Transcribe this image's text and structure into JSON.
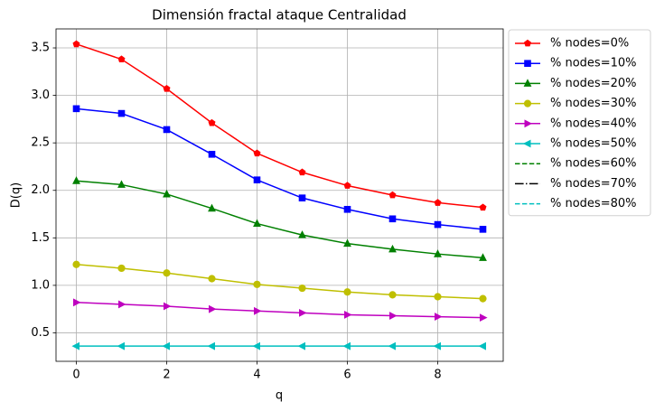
{
  "chart_data": {
    "type": "line",
    "title": "Dimensión fractal ataque Centralidad",
    "xlabel": "q",
    "ylabel": "D(q)",
    "x": [
      0,
      1,
      2,
      3,
      4,
      5,
      6,
      7,
      8,
      9
    ],
    "xlim": [
      -0.45,
      9.45
    ],
    "xticks": [
      0,
      2,
      4,
      6,
      8
    ],
    "ylim": [
      0.2,
      3.7
    ],
    "yticks": [
      0.5,
      {
        "value": 1,
        "label": "1.0"
      },
      1.5,
      {
        "value": 2,
        "label": "2.0"
      },
      2.5,
      {
        "value": 3,
        "label": "3.0"
      },
      3.5
    ],
    "grid": true,
    "legend": "outside upper right",
    "series": [
      {
        "name": "% nodes=0%",
        "color": "#ff0000",
        "marker": "pentagon",
        "linestyle": "solid",
        "values": [
          3.54,
          3.38,
          3.07,
          2.71,
          2.39,
          2.19,
          2.05,
          1.95,
          1.87,
          1.82
        ]
      },
      {
        "name": "% nodes=10%",
        "color": "#0000ff",
        "marker": "square",
        "linestyle": "solid",
        "values": [
          2.86,
          2.81,
          2.64,
          2.38,
          2.11,
          1.92,
          1.8,
          1.7,
          1.64,
          1.59
        ]
      },
      {
        "name": "% nodes=20%",
        "color": "#008000",
        "marker": "triangle-up",
        "linestyle": "solid",
        "values": [
          2.1,
          2.06,
          1.96,
          1.81,
          1.65,
          1.53,
          1.44,
          1.38,
          1.33,
          1.29
        ]
      },
      {
        "name": "% nodes=30%",
        "color": "#bfbf00",
        "marker": "circle",
        "linestyle": "solid",
        "values": [
          1.22,
          1.18,
          1.13,
          1.07,
          1.01,
          0.97,
          0.93,
          0.9,
          0.88,
          0.86
        ]
      },
      {
        "name": "% nodes=40%",
        "color": "#bf00bf",
        "marker": "triangle-right",
        "linestyle": "solid",
        "values": [
          0.82,
          0.8,
          0.78,
          0.75,
          0.73,
          0.71,
          0.69,
          0.68,
          0.67,
          0.66
        ]
      },
      {
        "name": "% nodes=50%",
        "color": "#00bfbf",
        "marker": "triangle-left",
        "linestyle": "solid",
        "values": [
          0.36,
          0.36,
          0.36,
          0.36,
          0.36,
          0.36,
          0.36,
          0.36,
          0.36,
          0.36
        ]
      },
      {
        "name": "% nodes=60%",
        "color": "#008000",
        "marker": "none",
        "linestyle": "dashed",
        "values": [
          null,
          null,
          null,
          null,
          null,
          null,
          null,
          null,
          null,
          null
        ]
      },
      {
        "name": "% nodes=70%",
        "color": "#000000",
        "marker": "none",
        "linestyle": "dashdot",
        "values": [
          null,
          null,
          null,
          null,
          null,
          null,
          null,
          null,
          null,
          null
        ]
      },
      {
        "name": "% nodes=80%",
        "color": "#00bfbf",
        "marker": "none",
        "linestyle": "dashed",
        "values": [
          null,
          null,
          null,
          null,
          null,
          null,
          null,
          null,
          null,
          null
        ]
      }
    ]
  }
}
